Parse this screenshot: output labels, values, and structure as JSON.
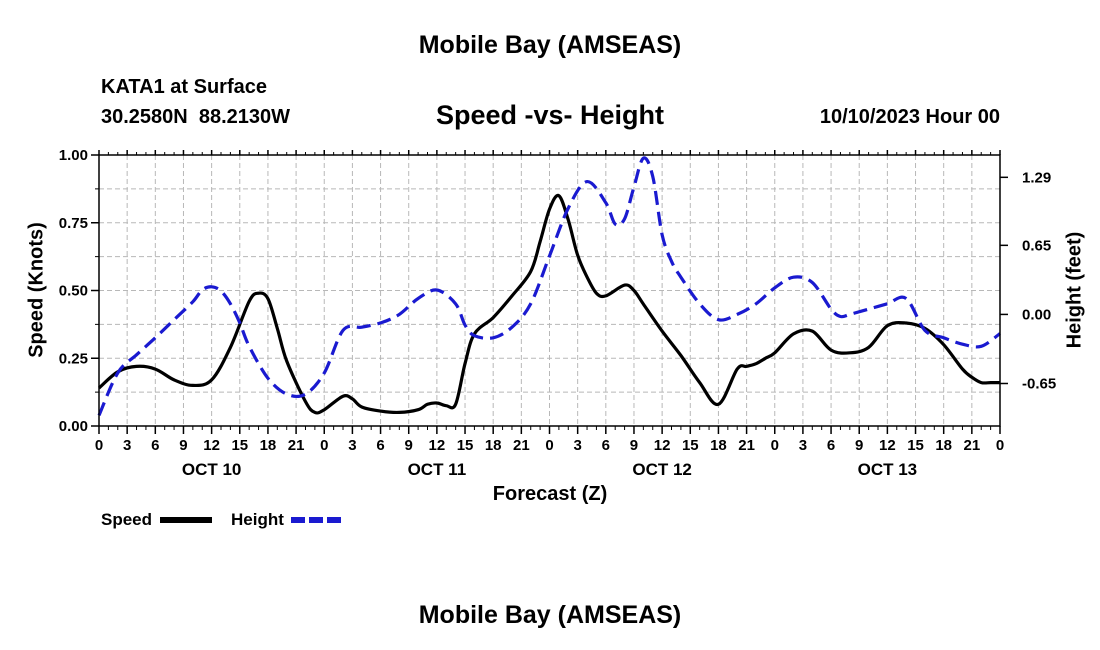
{
  "header": {
    "title": "Mobile Bay (AMSEAS)",
    "station": "KATA1 at Surface",
    "coords": "30.2580N  88.2130W",
    "subtitle": "Speed -vs- Height",
    "datetime": "10/10/2023 Hour 00"
  },
  "footer": {
    "title": "Mobile Bay (AMSEAS)"
  },
  "colors": {
    "speed": "#000000",
    "height": "#1a1ad0",
    "grid": "#b8b8b8"
  },
  "chart_data": {
    "type": "line",
    "title": "Speed -vs- Height",
    "xlabel": "Forecast (Z)",
    "ylabel": "Speed (Knots)",
    "y2label": "Height (feet)",
    "xlim": [
      0,
      96
    ],
    "ylim": [
      0,
      1
    ],
    "y2lim": [
      -1.05,
      1.5
    ],
    "grid": true,
    "y_ticks": [
      0,
      0.25,
      0.5,
      0.75,
      1.0
    ],
    "y_tick_labels": [
      "0.00",
      "0.25",
      "0.50",
      "0.75",
      "1.00"
    ],
    "y2_ticks": [
      -0.65,
      0.0,
      0.65,
      1.29
    ],
    "y2_tick_labels": [
      "-0.65",
      "0.00",
      "0.65",
      "1.29"
    ],
    "x_ticks": [
      0,
      3,
      6,
      9,
      12,
      15,
      18,
      21,
      24,
      27,
      30,
      33,
      36,
      39,
      42,
      45,
      48,
      51,
      54,
      57,
      60,
      63,
      66,
      69,
      72,
      75,
      78,
      81,
      84,
      87,
      90,
      93,
      96
    ],
    "x_tick_labels": [
      "0",
      "3",
      "6",
      "9",
      "12",
      "15",
      "18",
      "21",
      "0",
      "3",
      "6",
      "9",
      "12",
      "15",
      "18",
      "21",
      "0",
      "3",
      "6",
      "9",
      "12",
      "15",
      "18",
      "21",
      "0",
      "3",
      "6",
      "9",
      "12",
      "15",
      "18",
      "21",
      "0"
    ],
    "day_labels": [
      {
        "label": "OCT 10",
        "x": 12
      },
      {
        "label": "OCT 11",
        "x": 36
      },
      {
        "label": "OCT 12",
        "x": 60
      },
      {
        "label": "OCT 13",
        "x": 84
      }
    ],
    "legend": [
      {
        "name": "Speed",
        "style": "solid"
      },
      {
        "name": "Height",
        "style": "dashed"
      }
    ],
    "series": [
      {
        "name": "Speed",
        "axis": "left",
        "style": "solid",
        "x": [
          0,
          2,
          4,
          6,
          8,
          10,
          12,
          14,
          16,
          17,
          18,
          19,
          20,
          22,
          23,
          24,
          26,
          27,
          28,
          30,
          32,
          34,
          35,
          36,
          37,
          38,
          39,
          40,
          42,
          44,
          46,
          47,
          48,
          49,
          50,
          51,
          52,
          53,
          54,
          56,
          57,
          58,
          60,
          62,
          64,
          66,
          68,
          69,
          70,
          71,
          72,
          74,
          76,
          78,
          80,
          82,
          84,
          86,
          88,
          90,
          92,
          93,
          94,
          95,
          96
        ],
        "y": [
          0.14,
          0.2,
          0.22,
          0.21,
          0.17,
          0.15,
          0.17,
          0.29,
          0.46,
          0.49,
          0.47,
          0.36,
          0.24,
          0.09,
          0.05,
          0.06,
          0.11,
          0.1,
          0.07,
          0.055,
          0.05,
          0.06,
          0.08,
          0.085,
          0.075,
          0.08,
          0.23,
          0.34,
          0.4,
          0.48,
          0.57,
          0.68,
          0.8,
          0.85,
          0.76,
          0.63,
          0.55,
          0.49,
          0.48,
          0.52,
          0.5,
          0.45,
          0.35,
          0.26,
          0.16,
          0.08,
          0.21,
          0.22,
          0.23,
          0.25,
          0.27,
          0.34,
          0.35,
          0.28,
          0.27,
          0.29,
          0.37,
          0.38,
          0.36,
          0.3,
          0.21,
          0.18,
          0.16,
          0.16,
          0.16
        ]
      },
      {
        "name": "Height",
        "axis": "right",
        "style": "dashed",
        "x": [
          0,
          2,
          4,
          6,
          8,
          10,
          11,
          12,
          13,
          14,
          15,
          16,
          18,
          20,
          22,
          24,
          26,
          28,
          30,
          32,
          34,
          36,
          38,
          39,
          40,
          42,
          44,
          46,
          48,
          50,
          52,
          54,
          55,
          56,
          57,
          58,
          59,
          60,
          61,
          62,
          64,
          66,
          68,
          70,
          72,
          74,
          76,
          78,
          79,
          80,
          82,
          84,
          86,
          88,
          90,
          92,
          94,
          96
        ],
        "y": [
          -0.95,
          -0.55,
          -0.38,
          -0.22,
          -0.05,
          0.12,
          0.23,
          0.26,
          0.22,
          0.1,
          -0.08,
          -0.3,
          -0.6,
          -0.75,
          -0.75,
          -0.55,
          -0.15,
          -0.12,
          -0.08,
          0.0,
          0.15,
          0.23,
          0.1,
          -0.1,
          -0.2,
          -0.22,
          -0.12,
          0.1,
          0.55,
          1.0,
          1.25,
          1.05,
          0.85,
          0.9,
          1.2,
          1.47,
          1.3,
          0.75,
          0.5,
          0.35,
          0.1,
          -0.05,
          0.0,
          0.1,
          0.25,
          0.35,
          0.3,
          0.05,
          -0.02,
          0.0,
          0.05,
          0.1,
          0.15,
          -0.15,
          -0.22,
          -0.28,
          -0.3,
          -0.18
        ]
      }
    ]
  }
}
